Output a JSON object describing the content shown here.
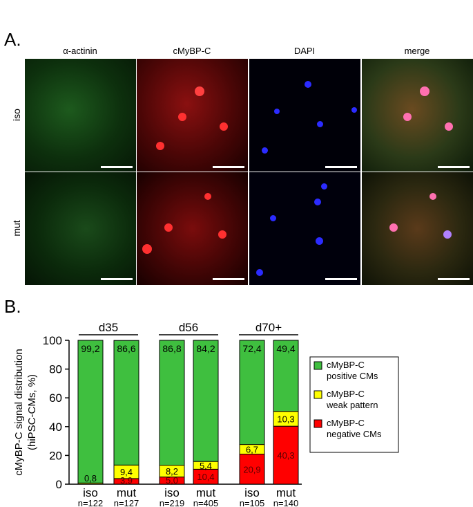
{
  "panel_a": {
    "letter": "A.",
    "columns": [
      "α-actinin",
      "cMyBP-C",
      "DAPI",
      "merge"
    ],
    "rows": [
      "iso",
      "mut"
    ]
  },
  "panel_b": {
    "letter": "B."
  },
  "colors": {
    "positive": "#3fbf3f",
    "weak": "#ffff00",
    "negative": "#ff0000",
    "actinin": "#2e8b2e",
    "mybpc": "#e01010",
    "dapi": "#2020ff"
  },
  "chart_data": {
    "type": "bar",
    "stacked": true,
    "ylabel": "cMyBP-C signal distribution (hiPSC-CMs, %)",
    "ylabel_lines": [
      "cMyBP-C signal distribution",
      "(hiPSC-CMs, %)"
    ],
    "ylim": [
      0,
      100
    ],
    "yticks": [
      "0",
      "20",
      "40",
      "60",
      "80",
      "100"
    ],
    "groups": [
      "d35",
      "d56",
      "d70+"
    ],
    "categories": [
      "iso",
      "mut",
      "iso",
      "mut",
      "iso",
      "mut"
    ],
    "n_labels": [
      "n=122",
      "n=127",
      "n=219",
      "n=405",
      "n=105",
      "n=140"
    ],
    "series": [
      {
        "name": "cMyBP-C negative CMs",
        "values": [
          0,
          3.9,
          5.0,
          10.4,
          20.9,
          40.3
        ],
        "labels": [
          "",
          "3,9",
          "5,0",
          "10,4",
          "20,9",
          "40,3"
        ]
      },
      {
        "name": "cMyBP-C weak pattern",
        "values": [
          0.8,
          9.4,
          8.2,
          5.4,
          6.7,
          10.3
        ],
        "labels": [
          "0,8",
          "9,4",
          "8,2",
          "5,4",
          "6,7",
          "10,3"
        ]
      },
      {
        "name": "cMyBP-C positive CMs",
        "values": [
          99.2,
          86.6,
          86.8,
          84.2,
          72.4,
          49.4
        ],
        "labels": [
          "99,2",
          "86,6",
          "86,8",
          "84,2",
          "72,4",
          "49,4"
        ]
      }
    ],
    "legend": {
      "placement": "right",
      "entries": [
        {
          "lines": [
            "cMyBP-C",
            "positive CMs"
          ],
          "color": "#3fbf3f"
        },
        {
          "lines": [
            "cMyBP-C",
            "weak pattern"
          ],
          "color": "#ffff00"
        },
        {
          "lines": [
            "cMyBP-C",
            "negative CMs"
          ],
          "color": "#ff0000"
        }
      ]
    }
  }
}
